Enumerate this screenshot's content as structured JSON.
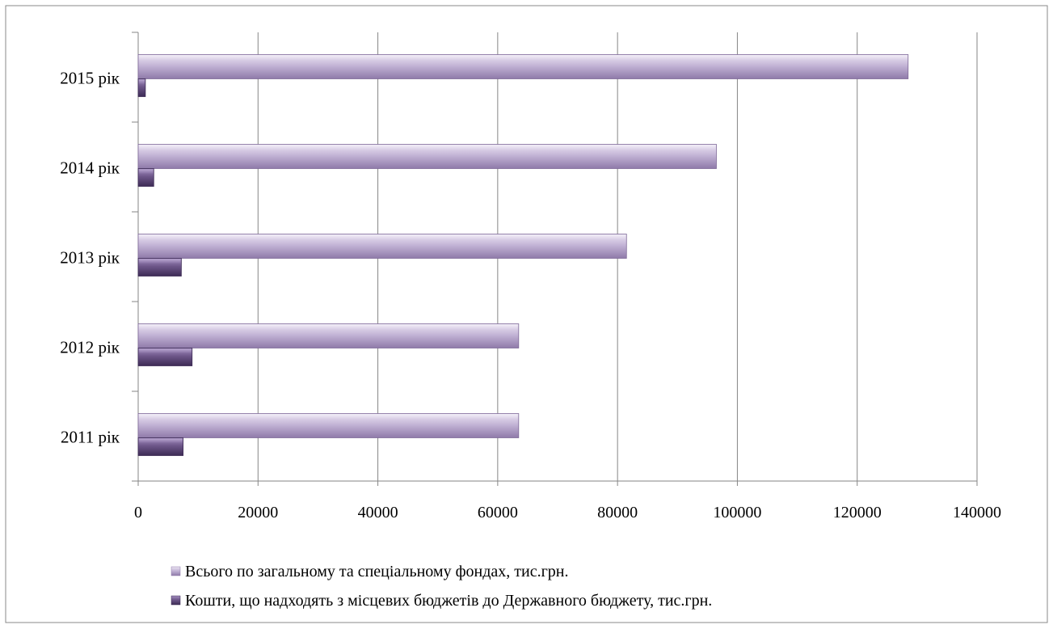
{
  "chart_data": {
    "type": "bar",
    "orientation": "horizontal",
    "categories": [
      "2011 рік",
      "2012 рік",
      "2013 рік",
      "2014 рік",
      "2015 рік"
    ],
    "series": [
      {
        "name": "Всього по загальному та спеціальному фондах, тис.грн.",
        "values": [
          63500,
          63500,
          81500,
          96500,
          128500
        ],
        "color": "#b3a2c7"
      },
      {
        "name": "Кошти, що надходять з місцевих бюджетів до Державного бюджету, тис.грн.",
        "values": [
          7500,
          9000,
          7200,
          2600,
          1200
        ],
        "color": "#604a7b"
      }
    ],
    "xlim": [
      0,
      140000
    ],
    "xticks": [
      "0",
      "20000",
      "40000",
      "60000",
      "80000",
      "100000",
      "120000",
      "140000"
    ],
    "grid": true,
    "legend_position": "bottom-left"
  }
}
